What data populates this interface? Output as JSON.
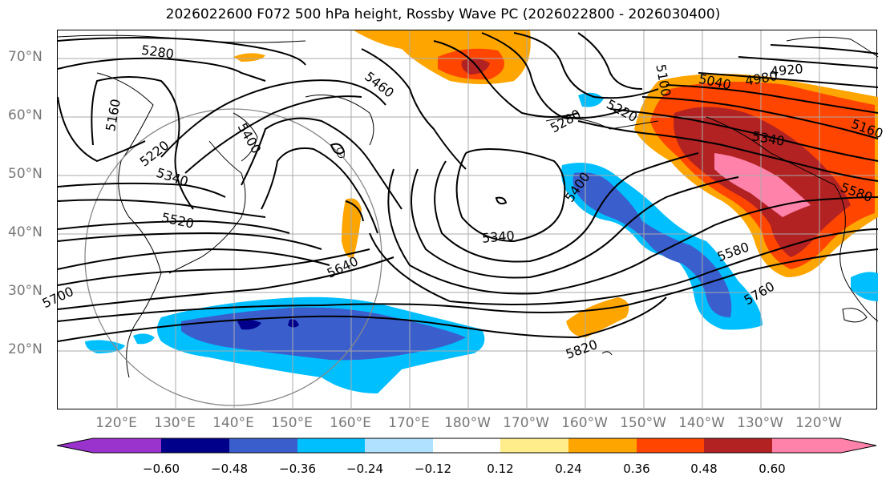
{
  "title": "2026022600 F072 500 hPa height, Rossby Wave PC (2026022800 - 2026030400)",
  "lat_labels": [
    "70°N",
    "60°N",
    "50°N",
    "40°N",
    "30°N",
    "20°N"
  ],
  "lon_labels": [
    "120°E",
    "130°E",
    "140°E",
    "150°E",
    "160°E",
    "170°E",
    "180°W",
    "170°W",
    "160°W",
    "150°W",
    "140°W",
    "130°W",
    "120°W"
  ],
  "contour_labels": [
    "5280",
    "5160",
    "5220",
    "5400",
    "5340",
    "5520",
    "5460",
    "5280",
    "5220",
    "5100",
    "5040",
    "4980",
    "4920",
    "5340",
    "5400",
    "5340",
    "5640",
    "5580",
    "5760",
    "5820",
    "5580",
    "5160",
    "5700"
  ],
  "colorbar": {
    "ticks": [
      "−0.60",
      "−0.48",
      "−0.36",
      "−0.24",
      "−0.12",
      "0.12",
      "0.24",
      "0.36",
      "0.48",
      "0.60"
    ],
    "colors": [
      "#9a32cd",
      "#00008b",
      "#3a5fcd",
      "#00bfff",
      "#b0e2ff",
      "#ffffff",
      "#ffec8b",
      "#ffa500",
      "#ff4500",
      "#b22222",
      "#ff82ab"
    ]
  }
}
